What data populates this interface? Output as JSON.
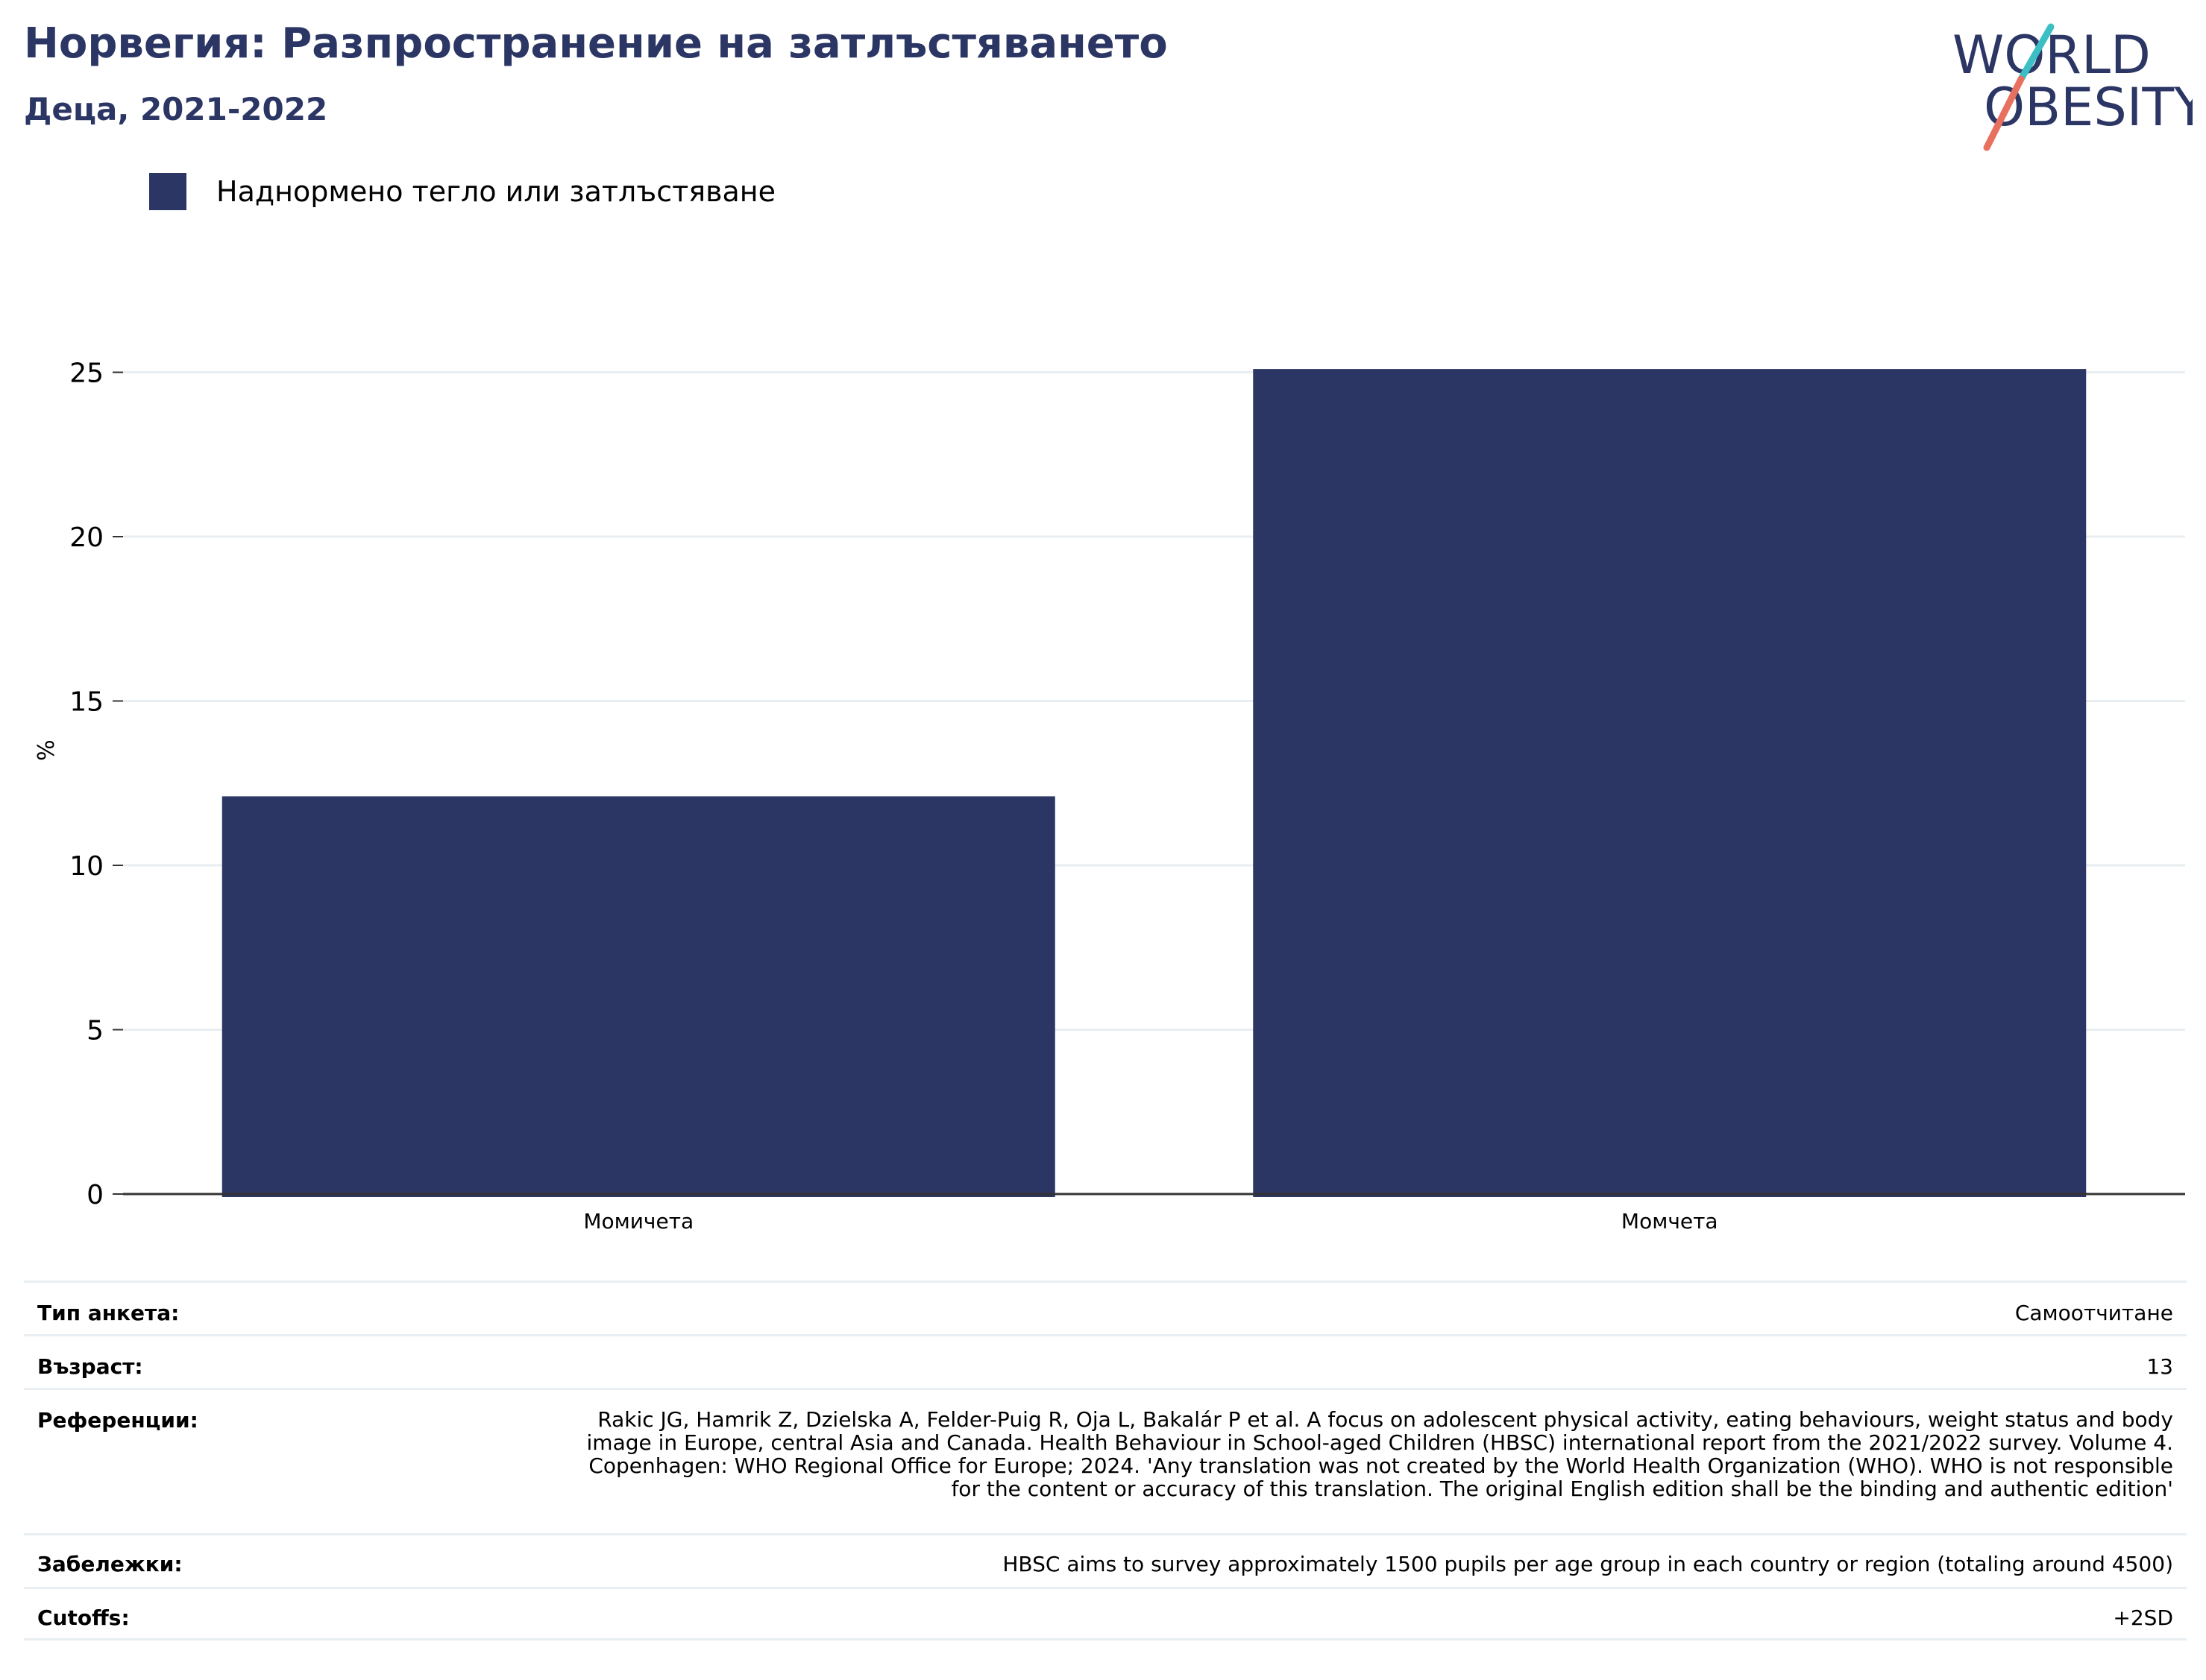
{
  "header": {
    "title": "Норвегия: Разпространение на затлъстяването",
    "subtitle": "Деца, 2021-2022"
  },
  "logo": {
    "line1": "WORLD",
    "line2": "OBESITY",
    "colors": {
      "text": "#2b3664",
      "slash_top": "#3bbfc4",
      "slash_bottom": "#e8705f"
    }
  },
  "legend": {
    "label": "Наднормено тегло или затлъстяване",
    "color": "#2b3664"
  },
  "chart_data": {
    "type": "bar",
    "categories": [
      "Момичета",
      "Момчета"
    ],
    "series": [
      {
        "name": "Наднормено тегло или затлъстяване",
        "values": [
          12.1,
          25.1
        ],
        "color": "#2b3664"
      }
    ],
    "ylabel": "%",
    "ylim": [
      0,
      27
    ],
    "yticks": [
      0,
      5,
      10,
      15,
      20,
      25
    ],
    "grid": true
  },
  "meta": {
    "survey_type": {
      "key": "Тип анкета:",
      "value": "Самоотчитане"
    },
    "age": {
      "key": "Възраст:",
      "value": "13"
    },
    "references": {
      "key": "Референции:",
      "value": "Rakic JG, Hamrik Z, Dzielska A, Felder-Puig R, Oja L, Bakalár P et al. A focus on adolescent physical activity, eating behaviours, weight status and body image in Europe, central Asia and Canada. Health Behaviour in School-aged Children (HBSC) international report from the 2021/2022 survey. Volume 4. Copenhagen: WHO Regional Office for Europe; 2024. 'Any translation was not created by the World Health Organization (WHO). WHO is not responsible for the content or accuracy of this translation. The original English edition shall be the binding and authentic edition'"
    },
    "notes": {
      "key": "Забележки:",
      "value": "HBSC aims to survey approximately 1500 pupils per age group in each country or region (totaling around 4500)"
    },
    "cutoffs": {
      "key": "Cutoffs:",
      "value": "+2SD"
    }
  }
}
